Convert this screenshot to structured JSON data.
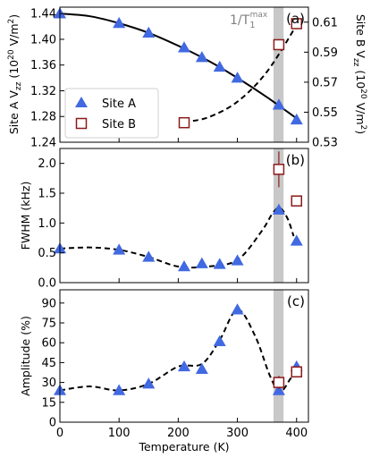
{
  "colors": {
    "site_a": "#4169e1",
    "site_b": "#8b1a1a",
    "band": "#c8c8c8",
    "band_label": "#808080",
    "curve": "#000000"
  },
  "chart_data": [
    {
      "type": "scatter",
      "panel_letter": "(a)",
      "band_label": "1/T₁^max",
      "band_x": [
        361,
        378
      ],
      "xlim": [
        0,
        420
      ],
      "x_ticks": [
        0,
        100,
        200,
        300,
        400
      ],
      "ylabel": "Site A V_zz (10²⁰ V/m²)",
      "ylim": [
        1.24,
        1.45
      ],
      "y_ticks": [
        "1.24",
        "1.28",
        "1.32",
        "1.36",
        "1.40",
        "1.44"
      ],
      "y2label": "Site B V_zz (10²⁰ V/m²)",
      "y2lim": [
        0.53,
        0.62
      ],
      "y2_ticks": [
        "0.53",
        "0.55",
        "0.57",
        "0.59",
        "0.61"
      ],
      "legend_position": "lower-left",
      "series": [
        {
          "name": "Site A",
          "axis": "left",
          "marker": "triangle",
          "x": [
            0,
            100,
            150,
            210,
            240,
            270,
            300,
            370,
            400
          ],
          "y": [
            1.44,
            1.425,
            1.41,
            1.387,
            1.372,
            1.357,
            1.34,
            1.298,
            1.275
          ],
          "fit": {
            "x": [
              0,
              50,
              100,
              150,
              200,
              250,
              300,
              350,
              400
            ],
            "y": [
              1.44,
              1.436,
              1.425,
              1.41,
              1.39,
              1.367,
              1.34,
              1.31,
              1.277
            ]
          }
        },
        {
          "name": "Site B",
          "axis": "right",
          "marker": "open-square",
          "x": [
            210,
            370,
            400
          ],
          "y": [
            0.543,
            0.595,
            0.609
          ],
          "fit": {
            "x": [
              210,
              250,
              300,
              350,
              400
            ],
            "y": [
              0.5435,
              0.5465,
              0.557,
              0.577,
              0.608
            ]
          }
        }
      ]
    },
    {
      "type": "scatter",
      "panel_letter": "(b)",
      "band_x": [
        361,
        378
      ],
      "xlim": [
        0,
        420
      ],
      "x_ticks": [
        0,
        100,
        200,
        300,
        400
      ],
      "ylabel": "FWHM (kHz)",
      "ylim": [
        0,
        2.25
      ],
      "y_ticks": [
        "0.0",
        "0.5",
        "1.0",
        "1.5",
        "2.0"
      ],
      "series": [
        {
          "name": "Site A",
          "marker": "triangle",
          "x": [
            0,
            100,
            150,
            210,
            240,
            270,
            300,
            370,
            400
          ],
          "y": [
            0.57,
            0.55,
            0.43,
            0.27,
            0.32,
            0.31,
            0.37,
            1.22,
            0.7
          ]
        },
        {
          "name": "Site B",
          "marker": "open-square",
          "x": [
            370,
            400
          ],
          "y": [
            1.9,
            1.37
          ],
          "err": [
            0.3,
            0
          ]
        }
      ],
      "fit": {
        "x": [
          0,
          50,
          100,
          150,
          200,
          250,
          300,
          340,
          360,
          372,
          385,
          395
        ],
        "y": [
          0.57,
          0.59,
          0.55,
          0.43,
          0.27,
          0.27,
          0.38,
          0.85,
          1.17,
          1.25,
          1.07,
          0.78
        ]
      }
    },
    {
      "type": "scatter",
      "panel_letter": "(c)",
      "band_x": [
        361,
        378
      ],
      "xlabel": "Temperature (K)",
      "xlim": [
        0,
        420
      ],
      "x_ticks": [
        "0",
        "100",
        "200",
        "300",
        "400"
      ],
      "ylabel": "Amplitude (%)",
      "ylim": [
        0,
        100
      ],
      "y_ticks": [
        "0",
        "15",
        "30",
        "45",
        "60",
        "75",
        "90"
      ],
      "series": [
        {
          "name": "Site A",
          "marker": "triangle",
          "x": [
            0,
            100,
            150,
            210,
            240,
            270,
            300,
            370,
            400
          ],
          "y": [
            24,
            24,
            29,
            42,
            40,
            61,
            85,
            24,
            42
          ]
        },
        {
          "name": "Site B",
          "marker": "open-square",
          "x": [
            370,
            400
          ],
          "y": [
            30,
            38
          ],
          "err": [
            5,
            0
          ]
        }
      ],
      "fit": {
        "x": [
          0,
          50,
          100,
          150,
          200,
          240,
          270,
          300,
          330,
          355,
          372,
          390,
          400
        ],
        "y": [
          24,
          27,
          24,
          29,
          42,
          44,
          62,
          85,
          65,
          35,
          23,
          33,
          38
        ]
      }
    }
  ]
}
